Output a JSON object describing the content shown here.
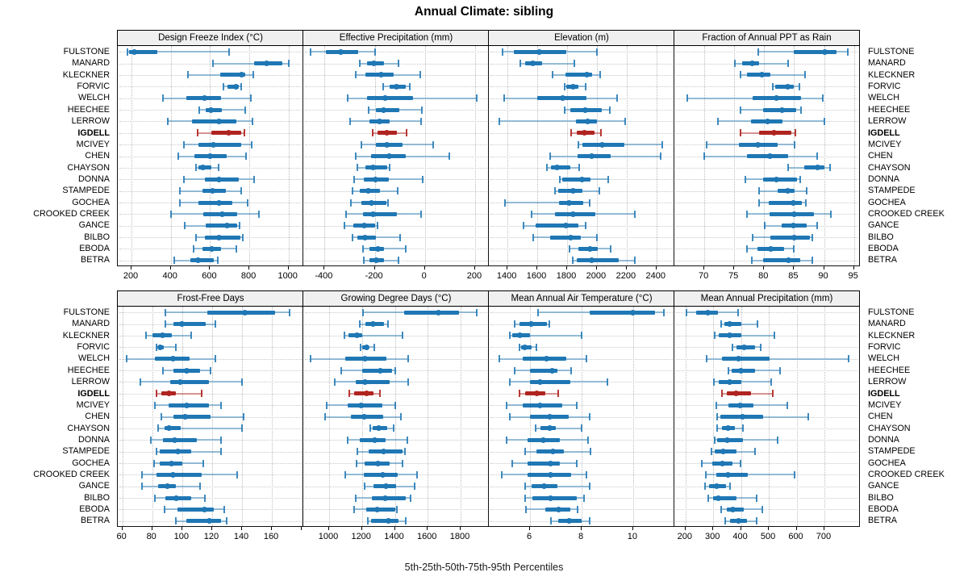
{
  "title": "Annual Climate: sibling",
  "caption": "5th-25th-50th-75th-95th Percentiles",
  "stations": [
    "FULSTONE",
    "MANARD",
    "KLECKNER",
    "FORVIC",
    "WELCH",
    "HEECHEE",
    "LERROW",
    "IGDELL",
    "MCIVEY",
    "CHEN",
    "CHAYSON",
    "DONNA",
    "STAMPEDE",
    "GOCHEA",
    "CROOKED CREEK",
    "GANCE",
    "BILBO",
    "EBODA",
    "BETRA"
  ],
  "highlight_station": "IGDELL",
  "percentiles": [
    "5th",
    "25th",
    "50th",
    "75th",
    "95th"
  ],
  "colors": {
    "blue": "#1f77b4",
    "blue_light": "rgba(31,119,180,0.45)",
    "blue_cap": "rgba(31,119,180,0.85)",
    "red": "#b02420",
    "red_light": "rgba(176,36,32,0.45)",
    "red_cap": "rgba(176,36,32,0.9)",
    "strip_bg": "#f0f0f0",
    "grid": "#bdbdbd"
  },
  "chart_data": [
    {
      "type": "scatter",
      "subtype": "percentile-interval",
      "row": 1,
      "slug": "design-freeze-index",
      "title": "Design Freeze Index (°C)",
      "xlim": [
        130,
        1075
      ],
      "ticks": [
        200,
        400,
        600,
        800,
        1000
      ],
      "tick_labels": [
        "200",
        "400",
        "600",
        "800",
        "1000"
      ],
      "values": [
        [
          180,
          189,
          216,
          332,
          696
        ],
        [
          614,
          825,
          886,
          967,
          1001
        ],
        [
          488,
          651,
          760,
          780,
          821
        ],
        [
          669,
          690,
          733,
          748,
          760
        ],
        [
          359,
          481,
          570,
          658,
          807
        ],
        [
          546,
          576,
          603,
          658,
          780
        ],
        [
          383,
          506,
          644,
          733,
          818
        ],
        [
          535,
          608,
          695,
          758,
          775
        ],
        [
          465,
          539,
          617,
          760,
          812
        ],
        [
          438,
          522,
          601,
          685,
          784
        ],
        [
          529,
          539,
          563,
          608,
          644
        ],
        [
          465,
          573,
          644,
          746,
          825
        ],
        [
          447,
          563,
          614,
          682,
          760
        ],
        [
          447,
          542,
          644,
          712,
          793
        ],
        [
          400,
          567,
          662,
          739,
          848
        ],
        [
          472,
          576,
          685,
          740,
          752
        ],
        [
          527,
          573,
          644,
          755,
          766
        ],
        [
          516,
          563,
          608,
          658,
          733
        ],
        [
          417,
          499,
          539,
          620,
          640
        ]
      ]
    },
    {
      "type": "scatter",
      "subtype": "percentile-interval",
      "row": 1,
      "slug": "effective-precipitation",
      "title": "Effective Precipitation (mm)",
      "xlim": [
        -485,
        255
      ],
      "ticks": [
        -400,
        -200,
        0,
        200
      ],
      "tick_labels": [
        "-400",
        "-200",
        "0",
        "200"
      ],
      "values": [
        [
          -455,
          -395,
          -337,
          -265,
          -198
        ],
        [
          -260,
          -232,
          -203,
          -162,
          -105
        ],
        [
          -275,
          -237,
          -175,
          -123,
          -18
        ],
        [
          -167,
          -140,
          -113,
          -75,
          -60
        ],
        [
          -308,
          -232,
          -159,
          -48,
          206
        ],
        [
          -224,
          -194,
          -165,
          -102,
          -11
        ],
        [
          -297,
          -221,
          -180,
          -140,
          -14
        ],
        [
          -207,
          -189,
          -153,
          -113,
          -72
        ],
        [
          -254,
          -194,
          -151,
          -88,
          33
        ],
        [
          -275,
          -216,
          -143,
          -75,
          97
        ],
        [
          -270,
          -237,
          -207,
          -150,
          -140
        ],
        [
          -284,
          -243,
          -196,
          -143,
          -8
        ],
        [
          -289,
          -259,
          -227,
          -178,
          -108
        ],
        [
          -294,
          -254,
          -213,
          -155,
          -148
        ],
        [
          -315,
          -248,
          -207,
          -113,
          -14
        ],
        [
          -321,
          -286,
          -243,
          -200,
          -190
        ],
        [
          -288,
          -270,
          -238,
          -194,
          -99
        ],
        [
          -248,
          -221,
          -186,
          -162,
          -78
        ],
        [
          -245,
          -221,
          -194,
          -162,
          -105
        ]
      ]
    },
    {
      "type": "scatter",
      "subtype": "percentile-interval",
      "row": 1,
      "slug": "elevation",
      "title": "Elevation (m)",
      "xlim": [
        1275,
        2520
      ],
      "ticks": [
        1400,
        1600,
        1800,
        2000,
        2200,
        2400
      ],
      "tick_labels": [
        "1400",
        "1600",
        "1800",
        "2000",
        "2200",
        "2400"
      ],
      "values": [
        [
          1368,
          1445,
          1612,
          1796,
          2000
        ],
        [
          1485,
          1517,
          1571,
          1634,
          1847
        ],
        [
          1703,
          1787,
          1930,
          1968,
          2022
        ],
        [
          1785,
          1796,
          1838,
          1877,
          1922
        ],
        [
          1380,
          1598,
          1770,
          1928,
          2135
        ],
        [
          1782,
          1823,
          1919,
          2031,
          2085
        ],
        [
          1346,
          1861,
          1937,
          2000,
          2190
        ],
        [
          1829,
          1865,
          1914,
          1982,
          2025
        ],
        [
          1877,
          1904,
          2036,
          2184,
          2436
        ],
        [
          1685,
          1870,
          1966,
          2094,
          2427
        ],
        [
          1665,
          1690,
          1730,
          1820,
          1883
        ],
        [
          1750,
          1770,
          1900,
          1960,
          2076
        ],
        [
          1720,
          1742,
          1841,
          1904,
          2018
        ],
        [
          1382,
          1744,
          1811,
          1910,
          1951
        ],
        [
          1562,
          1720,
          1838,
          1991,
          2252
        ],
        [
          1508,
          1589,
          1793,
          1877,
          1922
        ],
        [
          1574,
          1688,
          1823,
          1895,
          2000
        ],
        [
          1816,
          1877,
          1955,
          2004,
          2090
        ],
        [
          1838,
          1865,
          1964,
          2147,
          2252
        ]
      ]
    },
    {
      "type": "scatter",
      "subtype": "percentile-interval",
      "row": 1,
      "slug": "fraction-ppt-rain",
      "title": "Fraction of Annual PPT as Rain",
      "xlim": [
        65,
        96
      ],
      "ticks": [
        70,
        75,
        80,
        85,
        90,
        95
      ],
      "tick_labels": [
        "70",
        "75",
        "80",
        "85",
        "90",
        "95"
      ],
      "values": [
        [
          79,
          85,
          90.1,
          92.1,
          94
        ],
        [
          75.1,
          76.3,
          78,
          79.1,
          84
        ],
        [
          76.1,
          77.1,
          79.6,
          81,
          86.8
        ],
        [
          81.5,
          81.8,
          83.9,
          84.9,
          85.9
        ],
        [
          67.1,
          78,
          82,
          86.1,
          89.8
        ],
        [
          76,
          79.8,
          83,
          85.3,
          86.1
        ],
        [
          72.3,
          77.8,
          80.5,
          83.1,
          90
        ],
        [
          76.1,
          79.1,
          81.7,
          84.6,
          85.2
        ],
        [
          70.4,
          75.8,
          78.9,
          82.2,
          85.1
        ],
        [
          70,
          77.1,
          81,
          84,
          88.9
        ],
        [
          84,
          86.7,
          88.9,
          90,
          91
        ],
        [
          76.8,
          79.8,
          82,
          85.5,
          86
        ],
        [
          79.1,
          82.2,
          83.9,
          85.1,
          87.1
        ],
        [
          79.1,
          80.8,
          84.9,
          86.3,
          86.9
        ],
        [
          77.1,
          80.9,
          85,
          88.3,
          91.1
        ],
        [
          80.1,
          82.9,
          84.9,
          87.1,
          88.9
        ],
        [
          78,
          81,
          85,
          87.6,
          88.1
        ],
        [
          77.1,
          78.9,
          81.1,
          83.3,
          84.9
        ],
        [
          77.9,
          79.8,
          84,
          86.1,
          88
        ]
      ]
    },
    {
      "type": "scatter",
      "subtype": "percentile-interval",
      "row": 2,
      "slug": "frost-free-days",
      "title": "Frost-Free Days",
      "xlim": [
        57,
        181
      ],
      "ticks": [
        60,
        80,
        100,
        120,
        140,
        160,
        180
      ],
      "tick_labels": [
        "60",
        "80",
        "100",
        "120",
        "140",
        "160",
        ""
      ],
      "values": [
        [
          89,
          117,
          142,
          162,
          172
        ],
        [
          89,
          94,
          100,
          116,
          122
        ],
        [
          76,
          80,
          87,
          93,
          106
        ],
        [
          83,
          84,
          85.5,
          88,
          96
        ],
        [
          63,
          82,
          94,
          105,
          122
        ],
        [
          87,
          94,
          103,
          112,
          119
        ],
        [
          72,
          92,
          99,
          118,
          140
        ],
        [
          83,
          86,
          91,
          96,
          113
        ],
        [
          82,
          91,
          103,
          118,
          126
        ],
        [
          86,
          94,
          102,
          119,
          141
        ],
        [
          84,
          88,
          91,
          99,
          140
        ],
        [
          79,
          87,
          95,
          110,
          126
        ],
        [
          83,
          85,
          97,
          106,
          126
        ],
        [
          81,
          85,
          93,
          100,
          114
        ],
        [
          73,
          83,
          94,
          113,
          137
        ],
        [
          73,
          84,
          90,
          96,
          112
        ],
        [
          82,
          89,
          96,
          106,
          115
        ],
        [
          88,
          97,
          115,
          121,
          128
        ],
        [
          96,
          103,
          118,
          126,
          130
        ]
      ]
    },
    {
      "type": "scatter",
      "subtype": "percentile-interval",
      "row": 2,
      "slug": "growing-degree-days",
      "title": "Growing Degree Days (°C)",
      "xlim": [
        843,
        1972
      ],
      "ticks": [
        1000,
        1200,
        1400,
        1600,
        1800
      ],
      "tick_labels": [
        "1000",
        "1200",
        "1400",
        "1600",
        "1800"
      ],
      "values": [
        [
          1208,
          1458,
          1665,
          1790,
          1896
        ],
        [
          1186,
          1221,
          1265,
          1335,
          1359
        ],
        [
          1092,
          1117,
          1170,
          1201,
          1447
        ],
        [
          1190,
          1199,
          1228,
          1241,
          1277
        ],
        [
          889,
          1096,
          1219,
          1351,
          1480
        ],
        [
          1074,
          1201,
          1313,
          1384,
          1401
        ],
        [
          1035,
          1161,
          1216,
          1368,
          1480
        ],
        [
          1125,
          1150,
          1230,
          1270,
          1307
        ],
        [
          985,
          1112,
          1195,
          1323,
          1404
        ],
        [
          977,
          1134,
          1211,
          1327,
          1437
        ],
        [
          1249,
          1265,
          1302,
          1354,
          1393
        ],
        [
          1112,
          1186,
          1277,
          1345,
          1475
        ],
        [
          1170,
          1241,
          1330,
          1447,
          1463
        ],
        [
          1166,
          1216,
          1298,
          1368,
          1445
        ],
        [
          1100,
          1211,
          1327,
          1417,
          1533
        ],
        [
          1214,
          1269,
          1346,
          1409,
          1521
        ],
        [
          1161,
          1258,
          1343,
          1467,
          1497
        ],
        [
          1153,
          1228,
          1290,
          1401,
          1412
        ],
        [
          1236,
          1253,
          1359,
          1420,
          1465
        ]
      ]
    },
    {
      "type": "scatter",
      "subtype": "percentile-interval",
      "row": 2,
      "slug": "mean-annual-air-temperature",
      "title": "Mean Annual Air Temperature (°C)",
      "xlim": [
        4.4,
        11.6
      ],
      "ticks": [
        6,
        8,
        10
      ],
      "tick_labels": [
        "6",
        "8",
        "10"
      ],
      "values": [
        [
          6.3,
          8.3,
          10.0,
          10.85,
          11.2
        ],
        [
          5.4,
          5.6,
          6.05,
          6.65,
          6.75
        ],
        [
          5.2,
          5.3,
          5.6,
          6.0,
          8.0
        ],
        [
          5.6,
          5.65,
          5.8,
          6.05,
          6.25
        ],
        [
          4.8,
          5.7,
          6.65,
          7.4,
          8.2
        ],
        [
          5.4,
          6.0,
          6.85,
          7.05,
          7.6
        ],
        [
          5.2,
          6.0,
          6.4,
          7.55,
          9.0
        ],
        [
          5.6,
          5.8,
          6.25,
          6.6,
          7.1
        ],
        [
          5.1,
          5.7,
          6.4,
          7.25,
          7.8
        ],
        [
          5.2,
          6.0,
          6.75,
          7.5,
          8.3
        ],
        [
          6.2,
          6.4,
          6.75,
          7.0,
          8.0
        ],
        [
          5.1,
          5.9,
          6.5,
          7.15,
          8.25
        ],
        [
          5.8,
          6.25,
          6.9,
          7.3,
          8.35
        ],
        [
          5.3,
          5.9,
          6.8,
          7.15,
          7.8
        ],
        [
          4.9,
          5.9,
          6.8,
          7.6,
          8.2
        ],
        [
          5.8,
          6.05,
          6.55,
          7.05,
          8.3
        ],
        [
          5.8,
          6.1,
          6.8,
          7.8,
          8.1
        ],
        [
          5.85,
          6.6,
          7.1,
          7.55,
          7.85
        ],
        [
          6.8,
          7.1,
          7.5,
          8.0,
          8.3
        ]
      ]
    },
    {
      "type": "scatter",
      "subtype": "percentile-interval",
      "row": 2,
      "slug": "mean-annual-precipitation",
      "title": "Mean Annual Precipitation (mm)",
      "xlim": [
        160,
        828
      ],
      "ticks": [
        200,
        300,
        400,
        500,
        600,
        700
      ],
      "tick_labels": [
        "200",
        "300",
        "400",
        "500",
        "600",
        "700"
      ],
      "values": [
        [
          202,
          238,
          281,
          317,
          390
        ],
        [
          327,
          339,
          360,
          402,
          458
        ],
        [
          305,
          320,
          358,
          402,
          521
        ],
        [
          368,
          383,
          412,
          450,
          470
        ],
        [
          276,
          330,
          392,
          503,
          788
        ],
        [
          354,
          366,
          400,
          450,
          540
        ],
        [
          303,
          320,
          359,
          400,
          508
        ],
        [
          332,
          349,
          383,
          436,
          513
        ],
        [
          310,
          354,
          397,
          445,
          566
        ],
        [
          315,
          325,
          405,
          479,
          643
        ],
        [
          313,
          330,
          354,
          378,
          407
        ],
        [
          305,
          315,
          349,
          407,
          533
        ],
        [
          294,
          305,
          337,
          383,
          450
        ],
        [
          260,
          296,
          332,
          370,
          399
        ],
        [
          274,
          310,
          354,
          426,
          593
        ],
        [
          270,
          284,
          313,
          345,
          359
        ],
        [
          281,
          299,
          317,
          383,
          455
        ],
        [
          327,
          349,
          370,
          410,
          477
        ],
        [
          344,
          361,
          392,
          421,
          455
        ]
      ]
    }
  ]
}
